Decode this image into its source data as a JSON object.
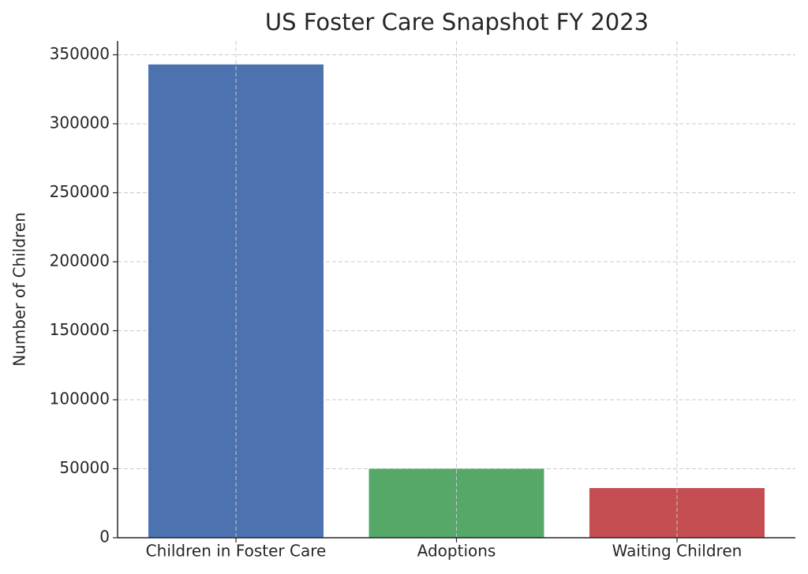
{
  "chart_data": {
    "type": "bar",
    "title": "US Foster Care Snapshot FY 2023",
    "y_label": "Number of Children",
    "categories": [
      "Children in Foster Care",
      "Adoptions",
      "Waiting Children"
    ],
    "values": [
      343000,
      50000,
      36000
    ],
    "colors": [
      "#4c72b0",
      "#55a868",
      "#c44e52"
    ],
    "ylim": [
      0,
      360000
    ],
    "yticks": [
      0,
      50000,
      100000,
      150000,
      200000,
      250000,
      300000,
      350000
    ],
    "grid": true
  }
}
